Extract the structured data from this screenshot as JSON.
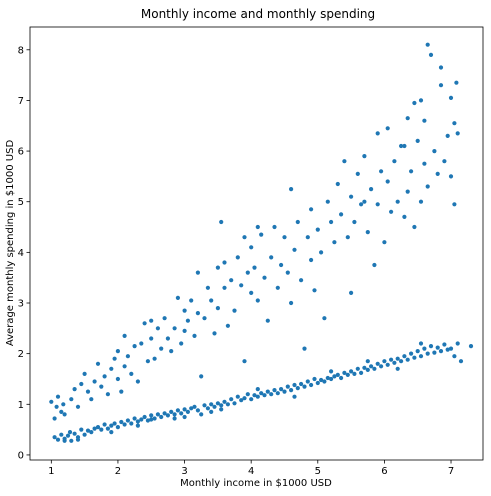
{
  "chart_data": {
    "type": "scatter",
    "title": "Monthly income and monthly spending",
    "xlabel": "Monthly income in $1000 USD",
    "ylabel": "Average monthly spending in $1000 USD",
    "xlim": [
      0.68,
      7.48
    ],
    "ylim": [
      -0.1,
      8.45
    ],
    "xticks": [
      1,
      2,
      3,
      4,
      5,
      6,
      7
    ],
    "yticks": [
      0,
      1,
      2,
      3,
      4,
      5,
      6,
      7,
      8
    ],
    "grid": false,
    "marker_color": "#1f77b4",
    "series": [
      {
        "points": [
          [
            1.0,
            1.05
          ],
          [
            1.05,
            0.72
          ],
          [
            1.08,
            0.95
          ],
          [
            1.1,
            1.15
          ],
          [
            1.15,
            0.85
          ],
          [
            1.18,
            1.0
          ],
          [
            1.2,
            0.8
          ],
          [
            1.3,
            1.1
          ],
          [
            1.35,
            1.3
          ],
          [
            1.4,
            0.95
          ],
          [
            1.45,
            1.4
          ],
          [
            1.5,
            1.6
          ],
          [
            1.55,
            1.25
          ],
          [
            1.6,
            1.1
          ],
          [
            1.65,
            1.45
          ],
          [
            1.7,
            1.8
          ],
          [
            1.75,
            1.35
          ],
          [
            1.8,
            1.55
          ],
          [
            1.85,
            1.2
          ],
          [
            1.9,
            1.7
          ],
          [
            1.95,
            1.9
          ],
          [
            2.0,
            2.05
          ],
          [
            2.0,
            1.5
          ],
          [
            2.05,
            1.25
          ],
          [
            2.1,
            1.75
          ],
          [
            2.1,
            2.35
          ],
          [
            2.15,
            1.95
          ],
          [
            2.2,
            1.6
          ],
          [
            2.25,
            2.15
          ],
          [
            2.3,
            1.45
          ],
          [
            2.35,
            2.2
          ],
          [
            2.4,
            2.6
          ],
          [
            2.45,
            1.85
          ],
          [
            2.5,
            2.3
          ],
          [
            2.5,
            2.65
          ],
          [
            2.55,
            1.9
          ],
          [
            2.6,
            2.5
          ],
          [
            2.65,
            2.1
          ],
          [
            2.7,
            2.7
          ],
          [
            2.75,
            2.3
          ],
          [
            2.8,
            2.05
          ],
          [
            2.85,
            2.5
          ],
          [
            2.9,
            3.1
          ],
          [
            2.95,
            2.2
          ],
          [
            3.0,
            2.45
          ],
          [
            3.0,
            2.85
          ],
          [
            3.05,
            2.65
          ],
          [
            3.1,
            3.05
          ],
          [
            3.15,
            2.35
          ],
          [
            3.2,
            2.8
          ],
          [
            3.2,
            3.6
          ],
          [
            3.25,
            1.55
          ],
          [
            3.3,
            2.7
          ],
          [
            3.35,
            3.3
          ],
          [
            3.4,
            3.05
          ],
          [
            3.45,
            2.4
          ],
          [
            3.5,
            3.7
          ],
          [
            3.5,
            2.9
          ],
          [
            3.55,
            4.6
          ],
          [
            3.6,
            3.3
          ],
          [
            3.6,
            3.8
          ],
          [
            3.65,
            2.55
          ],
          [
            3.7,
            3.45
          ],
          [
            3.75,
            2.85
          ],
          [
            3.8,
            3.9
          ],
          [
            3.85,
            3.35
          ],
          [
            3.9,
            4.3
          ],
          [
            3.9,
            1.85
          ],
          [
            3.95,
            3.6
          ],
          [
            4.0,
            3.2
          ],
          [
            4.0,
            4.1
          ],
          [
            4.05,
            3.7
          ],
          [
            4.1,
            3.05
          ],
          [
            4.15,
            4.35
          ],
          [
            4.2,
            3.5
          ],
          [
            4.25,
            2.65
          ],
          [
            4.3,
            3.9
          ],
          [
            4.35,
            4.5
          ],
          [
            4.4,
            3.3
          ],
          [
            4.45,
            3.75
          ],
          [
            4.5,
            4.3
          ],
          [
            4.55,
            3.6
          ],
          [
            4.6,
            5.25
          ],
          [
            4.6,
            3.0
          ],
          [
            4.65,
            4.05
          ],
          [
            4.7,
            4.6
          ],
          [
            4.75,
            3.45
          ],
          [
            4.8,
            2.1
          ],
          [
            4.85,
            4.3
          ],
          [
            4.9,
            3.85
          ],
          [
            4.9,
            4.85
          ],
          [
            4.95,
            3.25
          ],
          [
            5.0,
            4.45
          ],
          [
            5.05,
            4.0
          ],
          [
            5.1,
            2.7
          ],
          [
            5.15,
            5.0
          ],
          [
            5.2,
            4.6
          ],
          [
            5.25,
            4.2
          ],
          [
            5.3,
            5.35
          ],
          [
            5.35,
            4.75
          ],
          [
            5.4,
            5.8
          ],
          [
            5.45,
            4.3
          ],
          [
            5.5,
            5.1
          ],
          [
            5.5,
            3.2
          ],
          [
            5.55,
            4.6
          ],
          [
            5.6,
            5.55
          ],
          [
            5.65,
            4.95
          ],
          [
            5.7,
            5.9
          ],
          [
            5.75,
            4.4
          ],
          [
            5.8,
            5.25
          ],
          [
            5.85,
            3.75
          ],
          [
            5.9,
            6.35
          ],
          [
            5.9,
            4.95
          ],
          [
            5.95,
            5.6
          ],
          [
            6.0,
            4.2
          ],
          [
            6.05,
            5.4
          ],
          [
            6.05,
            6.45
          ],
          [
            6.1,
            4.8
          ],
          [
            6.15,
            5.8
          ],
          [
            6.2,
            5.0
          ],
          [
            6.25,
            6.1
          ],
          [
            6.3,
            4.7
          ],
          [
            6.35,
            6.65
          ],
          [
            6.35,
            5.2
          ],
          [
            6.4,
            5.6
          ],
          [
            6.45,
            4.5
          ],
          [
            6.5,
            6.2
          ],
          [
            6.55,
            5.0
          ],
          [
            6.55,
            7.0
          ],
          [
            6.6,
            5.75
          ],
          [
            6.6,
            6.6
          ],
          [
            6.65,
            5.3
          ],
          [
            6.65,
            8.1
          ],
          [
            6.7,
            7.9
          ],
          [
            6.75,
            6.0
          ],
          [
            6.8,
            5.55
          ],
          [
            6.85,
            7.3
          ],
          [
            6.85,
            7.65
          ],
          [
            6.9,
            5.8
          ],
          [
            6.95,
            6.3
          ],
          [
            7.0,
            5.5
          ],
          [
            7.0,
            7.05
          ],
          [
            7.05,
            4.95
          ],
          [
            7.05,
            6.55
          ],
          [
            7.08,
            7.35
          ],
          [
            7.1,
            6.35
          ],
          [
            6.45,
            6.95
          ],
          [
            6.3,
            6.1
          ],
          [
            5.7,
            5.0
          ],
          [
            4.1,
            4.5
          ]
        ]
      },
      {
        "points": [
          [
            1.05,
            0.35
          ],
          [
            1.1,
            0.3
          ],
          [
            1.15,
            0.4
          ],
          [
            1.2,
            0.32
          ],
          [
            1.25,
            0.38
          ],
          [
            1.28,
            0.45
          ],
          [
            1.3,
            0.28
          ],
          [
            1.35,
            0.42
          ],
          [
            1.4,
            0.35
          ],
          [
            1.45,
            0.5
          ],
          [
            1.5,
            0.4
          ],
          [
            1.55,
            0.48
          ],
          [
            1.6,
            0.45
          ],
          [
            1.65,
            0.52
          ],
          [
            1.7,
            0.55
          ],
          [
            1.75,
            0.5
          ],
          [
            1.8,
            0.6
          ],
          [
            1.85,
            0.52
          ],
          [
            1.9,
            0.58
          ],
          [
            1.95,
            0.62
          ],
          [
            2.0,
            0.55
          ],
          [
            2.05,
            0.65
          ],
          [
            2.1,
            0.6
          ],
          [
            2.15,
            0.68
          ],
          [
            2.2,
            0.62
          ],
          [
            2.25,
            0.72
          ],
          [
            2.3,
            0.66
          ],
          [
            2.35,
            0.7
          ],
          [
            2.4,
            0.75
          ],
          [
            2.45,
            0.68
          ],
          [
            2.5,
            0.78
          ],
          [
            2.55,
            0.72
          ],
          [
            2.6,
            0.8
          ],
          [
            2.65,
            0.75
          ],
          [
            2.7,
            0.82
          ],
          [
            2.75,
            0.78
          ],
          [
            2.8,
            0.85
          ],
          [
            2.85,
            0.8
          ],
          [
            2.9,
            0.88
          ],
          [
            2.95,
            0.82
          ],
          [
            3.0,
            0.9
          ],
          [
            3.05,
            0.85
          ],
          [
            3.1,
            0.92
          ],
          [
            3.15,
            0.95
          ],
          [
            3.2,
            0.88
          ],
          [
            3.25,
            0.8
          ],
          [
            3.3,
            0.98
          ],
          [
            3.35,
            0.92
          ],
          [
            3.4,
            1.0
          ],
          [
            3.45,
            0.95
          ],
          [
            3.5,
            1.02
          ],
          [
            3.55,
            0.98
          ],
          [
            3.6,
            1.05
          ],
          [
            3.65,
            1.0
          ],
          [
            3.7,
            1.1
          ],
          [
            3.75,
            1.02
          ],
          [
            3.8,
            1.15
          ],
          [
            3.85,
            1.08
          ],
          [
            3.9,
            1.12
          ],
          [
            3.95,
            1.2
          ],
          [
            4.0,
            1.1
          ],
          [
            4.05,
            1.18
          ],
          [
            4.1,
            1.15
          ],
          [
            4.15,
            1.22
          ],
          [
            4.2,
            1.18
          ],
          [
            4.25,
            1.25
          ],
          [
            4.3,
            1.2
          ],
          [
            4.35,
            1.28
          ],
          [
            4.4,
            1.22
          ],
          [
            4.45,
            1.3
          ],
          [
            4.5,
            1.25
          ],
          [
            4.55,
            1.35
          ],
          [
            4.6,
            1.28
          ],
          [
            4.65,
            1.38
          ],
          [
            4.7,
            1.32
          ],
          [
            4.75,
            1.4
          ],
          [
            4.8,
            1.35
          ],
          [
            4.85,
            1.45
          ],
          [
            4.9,
            1.38
          ],
          [
            4.95,
            1.5
          ],
          [
            5.0,
            1.42
          ],
          [
            5.05,
            1.48
          ],
          [
            5.1,
            1.45
          ],
          [
            5.15,
            1.52
          ],
          [
            5.2,
            1.5
          ],
          [
            5.25,
            1.55
          ],
          [
            5.3,
            1.58
          ],
          [
            5.35,
            1.52
          ],
          [
            5.4,
            1.62
          ],
          [
            5.45,
            1.58
          ],
          [
            5.5,
            1.65
          ],
          [
            5.55,
            1.6
          ],
          [
            5.6,
            1.7
          ],
          [
            5.65,
            1.62
          ],
          [
            5.7,
            1.72
          ],
          [
            5.75,
            1.68
          ],
          [
            5.8,
            1.75
          ],
          [
            5.85,
            1.7
          ],
          [
            5.9,
            1.8
          ],
          [
            5.95,
            1.75
          ],
          [
            6.0,
            1.85
          ],
          [
            6.05,
            1.78
          ],
          [
            6.1,
            1.88
          ],
          [
            6.15,
            1.82
          ],
          [
            6.2,
            1.9
          ],
          [
            6.25,
            1.85
          ],
          [
            6.3,
            1.95
          ],
          [
            6.35,
            1.88
          ],
          [
            6.4,
            2.0
          ],
          [
            6.45,
            1.92
          ],
          [
            6.5,
            2.05
          ],
          [
            6.55,
            1.95
          ],
          [
            6.6,
            2.1
          ],
          [
            6.65,
            2.0
          ],
          [
            6.7,
            2.15
          ],
          [
            6.75,
            2.02
          ],
          [
            6.8,
            2.12
          ],
          [
            6.85,
            2.05
          ],
          [
            6.9,
            2.18
          ],
          [
            6.95,
            2.08
          ],
          [
            7.0,
            2.1
          ],
          [
            7.05,
            1.95
          ],
          [
            7.1,
            2.2
          ],
          [
            7.15,
            1.85
          ],
          [
            7.3,
            2.15
          ],
          [
            6.55,
            2.2
          ],
          [
            6.2,
            1.7
          ],
          [
            5.75,
            1.85
          ],
          [
            5.2,
            1.65
          ],
          [
            4.65,
            1.15
          ],
          [
            4.1,
            1.3
          ],
          [
            3.55,
            0.9
          ],
          [
            3.0,
            0.75
          ],
          [
            2.5,
            0.7
          ],
          [
            1.9,
            0.45
          ],
          [
            1.4,
            0.3
          ],
          [
            1.2,
            0.28
          ],
          [
            2.3,
            0.58
          ],
          [
            2.85,
            0.72
          ],
          [
            3.4,
            0.85
          ]
        ]
      }
    ]
  }
}
